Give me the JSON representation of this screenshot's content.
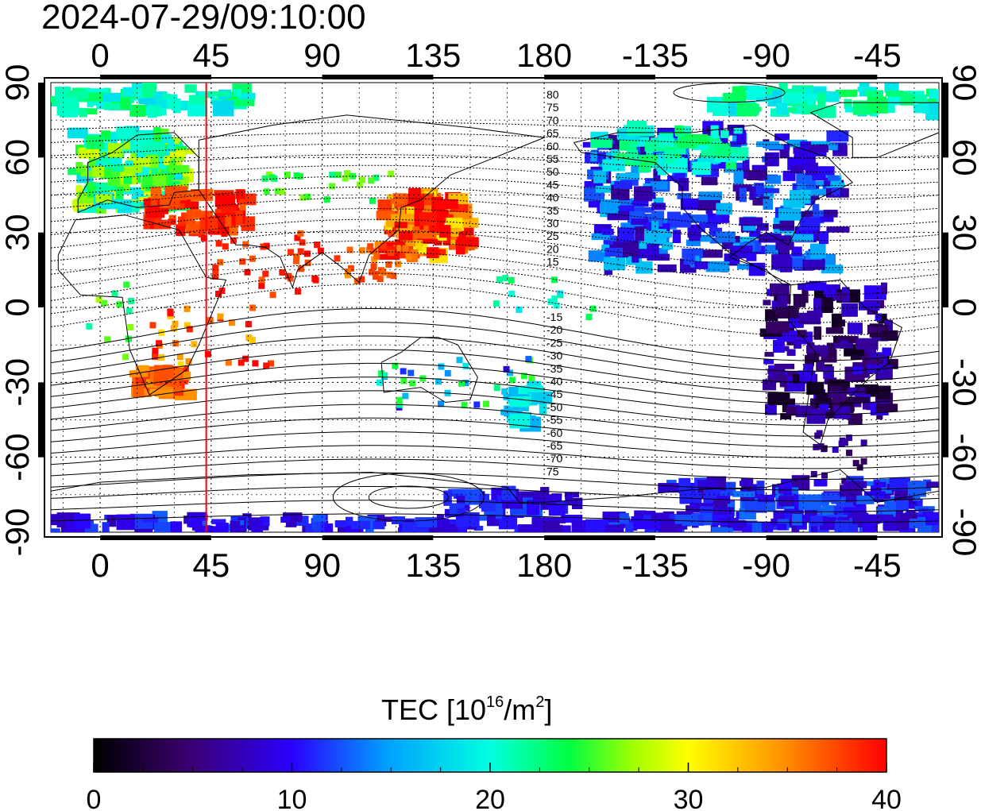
{
  "timestamp": "2024-07-29/09:10:00",
  "axes": {
    "lon_ticks": [
      "0",
      "45",
      "90",
      "135",
      "180",
      "-135",
      "-90",
      "-45"
    ],
    "lat_ticks": [
      "90",
      "60",
      "30",
      "0",
      "-30",
      "-60",
      "-90"
    ]
  },
  "contour_labels_north": [
    "80",
    "75",
    "70",
    "65",
    "60",
    "55",
    "50",
    "45",
    "40",
    "35",
    "30",
    "25",
    "20",
    "15"
  ],
  "contour_labels_south": [
    "-15",
    "-20",
    "-25",
    "-30",
    "-35",
    "-40",
    "-45",
    "-50",
    "-55",
    "-60",
    "-65",
    "-70",
    "75"
  ],
  "marker_line": {
    "longitude": 43,
    "color": "#ff0000"
  },
  "colorbar": {
    "title_prefix": "TEC  [10",
    "title_sup1": "16",
    "title_mid": "/m",
    "title_sup2": "2",
    "title_suffix": "]",
    "ticks": [
      "0",
      "10",
      "20",
      "30",
      "40"
    ],
    "min": 0,
    "max": 40,
    "colors": [
      "#000000",
      "#3a0070",
      "#2a00ff",
      "#00a0ff",
      "#00ffe0",
      "#00ff40",
      "#a0ff00",
      "#ffff00",
      "#ff9000",
      "#ff0000"
    ]
  },
  "map_data": {
    "projection": "equirectangular",
    "lon_range": [
      -20,
      340
    ],
    "lat_range": [
      -90,
      90
    ],
    "tec_regions": [
      {
        "name": "europe",
        "tec": 23
      },
      {
        "name": "middle-east",
        "tec": 39
      },
      {
        "name": "east-asia",
        "tec": 37
      },
      {
        "name": "southern-africa",
        "tec": 37
      },
      {
        "name": "north-america",
        "tec": 10
      },
      {
        "name": "south-america",
        "tec": 5
      },
      {
        "name": "antarctica",
        "tec": 9
      },
      {
        "name": "arctic",
        "tec": 19
      },
      {
        "name": "australia-nz",
        "tec": 16
      }
    ]
  }
}
